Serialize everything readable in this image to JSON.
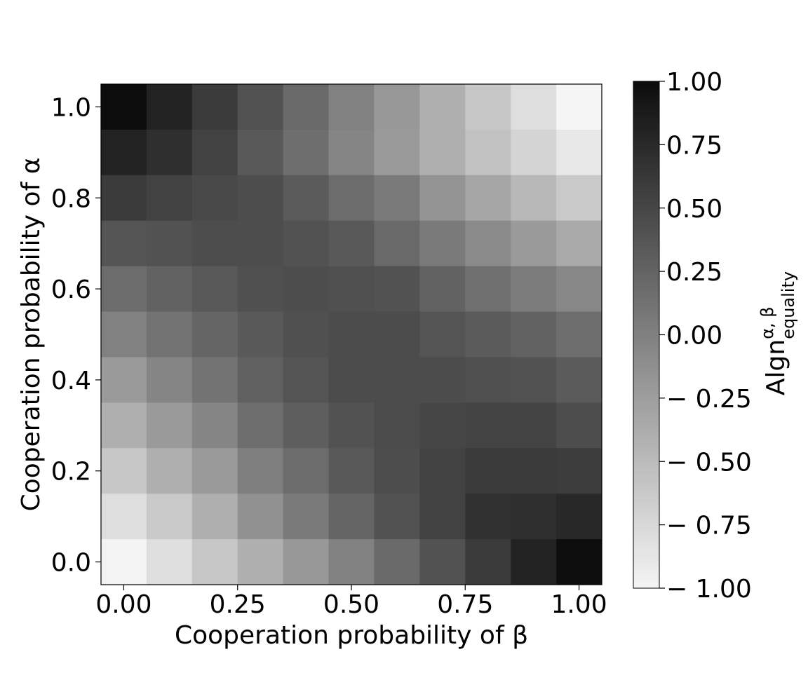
{
  "chart_data": {
    "type": "heatmap",
    "xlabel": "Cooperation probability of β",
    "ylabel": "Cooperation probability of α",
    "x": [
      0.0,
      0.1,
      0.2,
      0.3,
      0.4,
      0.5,
      0.6,
      0.7,
      0.8,
      0.9,
      1.0
    ],
    "y": [
      0.0,
      0.1,
      0.2,
      0.3,
      0.4,
      0.5,
      0.6,
      0.7,
      0.8,
      0.9,
      1.0
    ],
    "xlim": [
      -0.05,
      1.05
    ],
    "ylim": [
      -0.05,
      1.05
    ],
    "x_ticks": [
      "0.00",
      "0.25",
      "0.50",
      "0.75",
      "1.00"
    ],
    "x_tick_values": [
      0.0,
      0.25,
      0.5,
      0.75,
      1.0
    ],
    "y_ticks": [
      "0.0",
      "0.2",
      "0.4",
      "0.6",
      "0.8",
      "1.0"
    ],
    "y_tick_values": [
      0.0,
      0.2,
      0.4,
      0.6,
      0.8,
      1.0
    ],
    "values": [
      [
        1.0,
        0.8,
        0.6,
        0.4,
        0.2,
        0.0,
        -0.2,
        -0.4,
        -0.6,
        -0.8,
        -1.0
      ],
      [
        0.8,
        0.7,
        0.54,
        0.34,
        0.16,
        -0.04,
        -0.22,
        -0.4,
        -0.56,
        -0.72,
        -0.88
      ],
      [
        0.6,
        0.54,
        0.48,
        0.44,
        0.32,
        0.18,
        0.06,
        -0.16,
        -0.32,
        -0.48,
        -0.62
      ],
      [
        0.38,
        0.4,
        0.44,
        0.44,
        0.4,
        0.34,
        0.2,
        0.06,
        -0.08,
        -0.22,
        -0.36
      ],
      [
        0.18,
        0.26,
        0.34,
        0.42,
        0.44,
        0.42,
        0.4,
        0.26,
        0.14,
        0.04,
        -0.06
      ],
      [
        0.0,
        0.12,
        0.24,
        0.34,
        0.42,
        0.45,
        0.45,
        0.38,
        0.32,
        0.26,
        0.16
      ],
      [
        -0.22,
        -0.04,
        0.12,
        0.28,
        0.38,
        0.45,
        0.46,
        0.45,
        0.42,
        0.4,
        0.32
      ],
      [
        -0.4,
        -0.22,
        -0.04,
        0.16,
        0.3,
        0.4,
        0.46,
        0.5,
        0.52,
        0.52,
        0.44
      ],
      [
        -0.6,
        -0.4,
        -0.22,
        0.02,
        0.18,
        0.34,
        0.44,
        0.54,
        0.6,
        0.6,
        0.58
      ],
      [
        -0.8,
        -0.62,
        -0.4,
        -0.14,
        0.06,
        0.24,
        0.4,
        0.54,
        0.68,
        0.7,
        0.76
      ],
      [
        -0.98,
        -0.8,
        -0.6,
        -0.4,
        -0.2,
        0.0,
        0.2,
        0.4,
        0.6,
        0.8,
        0.98
      ]
    ],
    "colorbar": {
      "label_main": "Algn",
      "label_sup": "α, β",
      "label_sub": "equality",
      "range": [
        -1.0,
        1.0
      ],
      "ticks": [
        "1.00",
        "0.75",
        "0.50",
        "0.25",
        "0.00",
        "− 0.25",
        "− 0.50",
        "− 0.75",
        "− 1.00"
      ],
      "tick_values": [
        1.0,
        0.75,
        0.5,
        0.25,
        0.0,
        -0.25,
        -0.5,
        -0.75,
        -1.0
      ],
      "colormap": "Greys",
      "min_color": "#f5f5f5",
      "max_color": "#0c0c0c"
    }
  }
}
